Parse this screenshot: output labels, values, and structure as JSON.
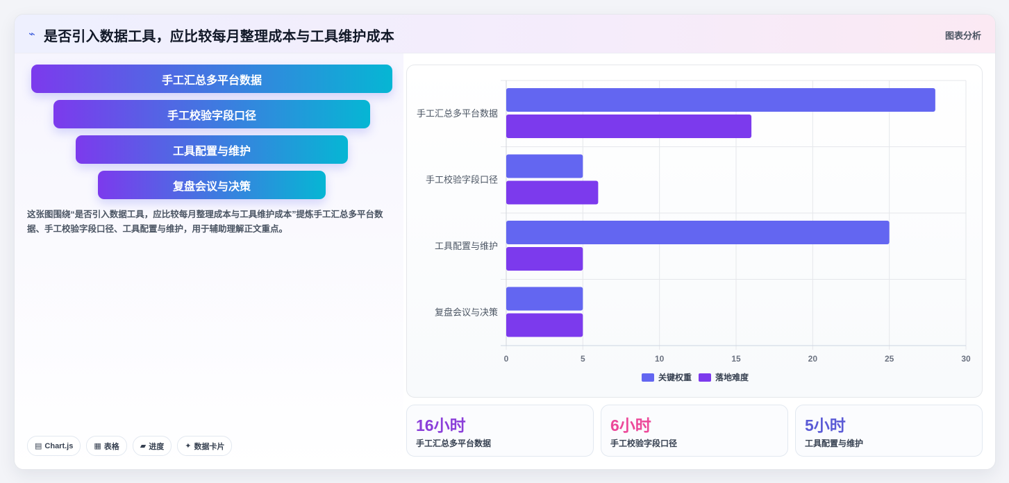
{
  "header": {
    "icon": "sparkline-icon",
    "title": "是否引入数据工具，应比较每月整理成本与工具维护成本",
    "tag": "图表分析"
  },
  "funnel": {
    "items": [
      "手工汇总多平台数据",
      "手工校验字段口径",
      "工具配置与维护",
      "复盘会议与决策"
    ]
  },
  "description": "这张图围绕“是否引入数据工具，应比较每月整理成本与工具维护成本”提炼手工汇总多平台数据、手工校验字段口径、工具配置与维护，用于辅助理解正文重点。",
  "chips": [
    {
      "icon": "chart-icon",
      "glyph": "▤",
      "label": "Chart.js"
    },
    {
      "icon": "table-icon",
      "glyph": "▦",
      "label": "表格"
    },
    {
      "icon": "progress-icon",
      "glyph": "▰",
      "label": "进度"
    },
    {
      "icon": "card-icon",
      "glyph": "✦",
      "label": "数据卡片"
    }
  ],
  "stats": [
    {
      "value": "16小时",
      "label": "手工汇总多平台数据",
      "color": "#8b3fd9"
    },
    {
      "value": "6小时",
      "label": "手工校验字段口径",
      "color": "#ec4899"
    },
    {
      "value": "5小时",
      "label": "工具配置与维护",
      "color": "#5b5bd6"
    }
  ],
  "chart_data": {
    "type": "bar",
    "orientation": "horizontal",
    "categories": [
      "手工汇总多平台数据",
      "手工校验字段口径",
      "工具配置与维护",
      "复盘会议与决策"
    ],
    "series": [
      {
        "name": "关键权重",
        "values": [
          28,
          5,
          25,
          5
        ],
        "color": "#6366f1"
      },
      {
        "name": "落地难度",
        "values": [
          16,
          6,
          5,
          5
        ],
        "color": "#7c3aed"
      }
    ],
    "xlim": [
      0,
      30
    ],
    "xticks": [
      "0",
      "5",
      "10",
      "15",
      "20",
      "25",
      "30"
    ],
    "grid": true,
    "legend": "bottom"
  }
}
